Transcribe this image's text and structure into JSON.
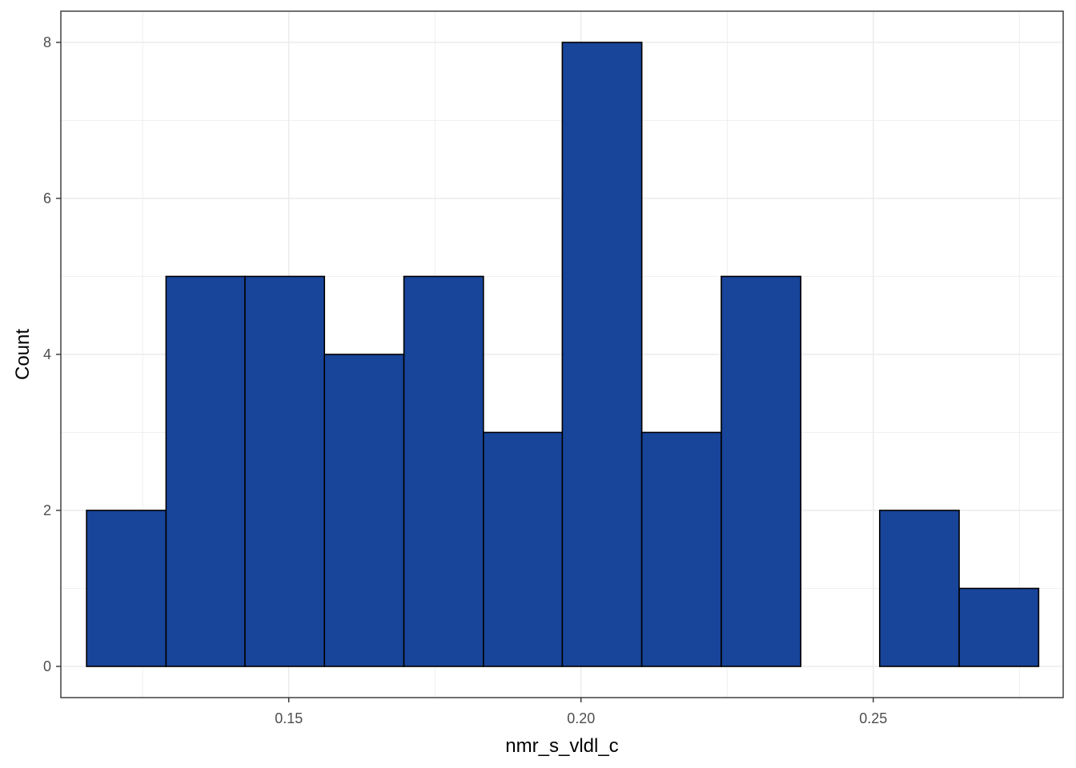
{
  "chart_data": {
    "type": "bar",
    "subtype": "histogram",
    "title": "",
    "xlabel": "nmr_s_vldl_c",
    "ylabel": "Count",
    "xlim": [
      0.111,
      0.2825
    ],
    "ylim": [
      -0.4,
      8.4
    ],
    "x_ticks": [
      0.15,
      0.2,
      0.25
    ],
    "x_tick_labels": [
      "0.15",
      "0.20",
      "0.25"
    ],
    "y_ticks": [
      0,
      2,
      4,
      6,
      8
    ],
    "y_tick_labels": [
      "0",
      "2",
      "4",
      "6",
      "8"
    ],
    "bins": [
      {
        "x0": 0.1154,
        "x1": 0.129,
        "count": 2
      },
      {
        "x0": 0.129,
        "x1": 0.1425,
        "count": 5
      },
      {
        "x0": 0.1425,
        "x1": 0.1561,
        "count": 5
      },
      {
        "x0": 0.1561,
        "x1": 0.1697,
        "count": 4
      },
      {
        "x0": 0.1697,
        "x1": 0.1833,
        "count": 5
      },
      {
        "x0": 0.1833,
        "x1": 0.1968,
        "count": 3
      },
      {
        "x0": 0.1968,
        "x1": 0.2104,
        "count": 8
      },
      {
        "x0": 0.2104,
        "x1": 0.224,
        "count": 3
      },
      {
        "x0": 0.224,
        "x1": 0.2376,
        "count": 5
      },
      {
        "x0": 0.2376,
        "x1": 0.2511,
        "count": 0
      },
      {
        "x0": 0.2511,
        "x1": 0.2647,
        "count": 2
      },
      {
        "x0": 0.2647,
        "x1": 0.2783,
        "count": 1
      }
    ],
    "grid": true,
    "fill_color": "#18449a",
    "edge_color": "#000000",
    "grid_color": "#ebebeb",
    "legend": "none"
  }
}
